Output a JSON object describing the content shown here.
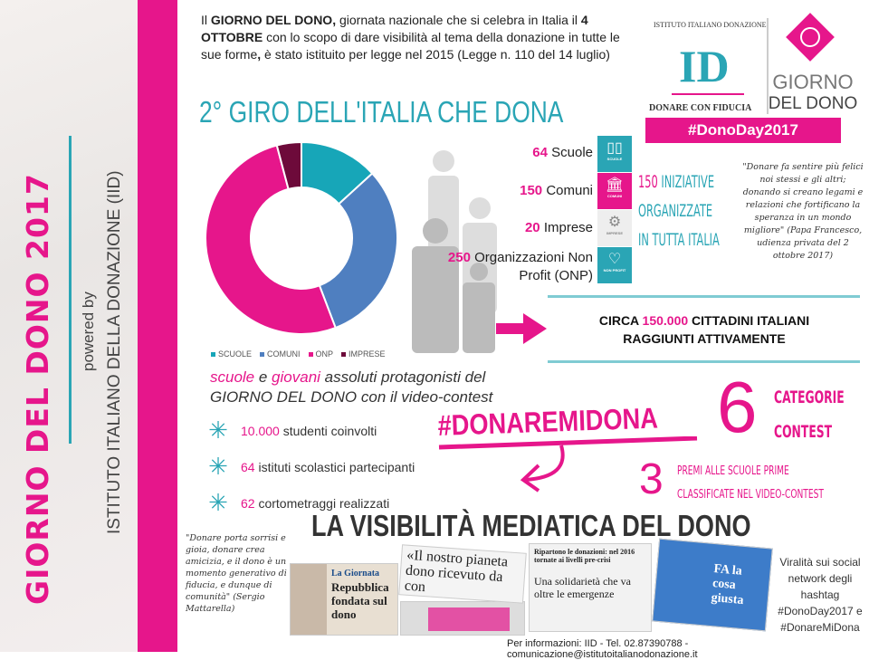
{
  "sidebar": {
    "title": "GIORNO DEL DONO 2017",
    "powered_by": "powered by",
    "organization": "ISTITUTO ITALIANO DELLA DONAZIONE (IID)"
  },
  "intro": {
    "p1": "Il ",
    "b1": "GIORNO DEL DONO,",
    "p2": " giornata nazionale che si celebra in Italia il ",
    "b2": "4 OTTOBRE",
    "p3": " con lo scopo di dare visibilità al tema della donazione in tutte le sue forme",
    "b3": ",",
    "p4": " è stato istituito per legge nel 2015 (Legge n. 110 del 14 luglio)"
  },
  "headline": "2° GIRO DELL'ITALIA CHE DONA",
  "logo": {
    "arc_text": "ISTITUTO ITALIANO DONAZIONE",
    "monogram": "ID",
    "tagline": "DONARE CON FIDUCIA",
    "giorno": "GIORNO",
    "del_dono": "DEL DONO",
    "hashtag": "#DonoDay2017"
  },
  "stats": [
    {
      "value": "64",
      "label": "Scuole",
      "tile": "SCUOLE",
      "icon": "book-icon",
      "color": "#2aa5b5"
    },
    {
      "value": "150",
      "label": "Comuni",
      "tile": "COMUNI",
      "icon": "building-icon",
      "color": "#e6168b"
    },
    {
      "value": "20",
      "label": "Imprese",
      "tile": "IMPRESE",
      "icon": "gears-icon",
      "color": "#eeeeee"
    },
    {
      "value": "250",
      "label": "Organizzazioni Non Profit (ONP)",
      "tile": "NON PROFIT",
      "icon": "heart-icon",
      "color": "#2aa5b5"
    }
  ],
  "iniziative": {
    "num": "150",
    "l1": " INIZIATIVE",
    "l2": "ORGANIZZATE",
    "l3": "IN TUTTA ITALIA"
  },
  "papa_quote": "\"Donare fa sentire più felici noi stessi e gli altri; donando si creano legami e relazioni che fortificano la speranza in un mondo migliore\" (Papa Francesco, udienza privata del 2 ottobre 2017)",
  "circa": {
    "pre": "CIRCA ",
    "num": "150.000",
    "post": " CITTADINI ITALIANI",
    "l2": "RAGGIUNTI ATTIVAMENTE"
  },
  "chart_data": {
    "type": "pie",
    "donut": true,
    "categories": [
      "SCUOLE",
      "COMUNI",
      "ONP",
      "IMPRESE"
    ],
    "values": [
      64,
      150,
      250,
      20
    ],
    "colors": [
      "#17a6b8",
      "#4f7fc0",
      "#e6168b",
      "#6d0a3a"
    ],
    "legend": "bottom"
  },
  "contest": {
    "w1": "scuole",
    "t1": " e ",
    "w2": "giovani",
    "t2": " assoluti protagonisti del",
    "l2": "GIORNO DEL DONO con il video-contest",
    "bullets": [
      {
        "num": "10.000",
        "text": " studenti coinvolti"
      },
      {
        "num": "64",
        "text": " istituti scolastici partecipanti"
      },
      {
        "num": "62",
        "text": " cortometraggi realizzati"
      }
    ],
    "hashtag": "#DONAREMIDONA",
    "six": "6",
    "categorie": "CATEGORIE",
    "contest_word": "CONTEST",
    "three": "3",
    "premi_l1": "PREMI ALLE SCUOLE PRIME",
    "premi_l2": "CLASSIFICATE NEL VIDEO-CONTEST"
  },
  "media": {
    "title": "LA VISIBILITÀ MEDIATICA DEL DONO",
    "mattarella_quote": "\"Donare porta sorrisi e gioia, donare crea amicizia, e il dono è un momento generativo di fiducia, e dunque di comunità\" (Sergio Mattarella)",
    "clip1_kicker": "La Giornata",
    "clip1_title": "Repubblica fondata sul dono",
    "clip2_title": "«Il nostro pianeta dono ricevuto da con",
    "clip3_head": "Ripartono le donazioni: nel 2016 tornate ai livelli pre-crisi",
    "clip3_title": "Una solidarietà che va oltre le emergenze",
    "clip4_title": "FA la cosa giusta",
    "viral": "Viralità sui social network degli hashtag #DonoDay2017 e #DonareMiDona"
  },
  "footer": "Per informazioni: IID - Tel. 02.87390788 - comunicazione@istitutoitalianodonazione.it"
}
